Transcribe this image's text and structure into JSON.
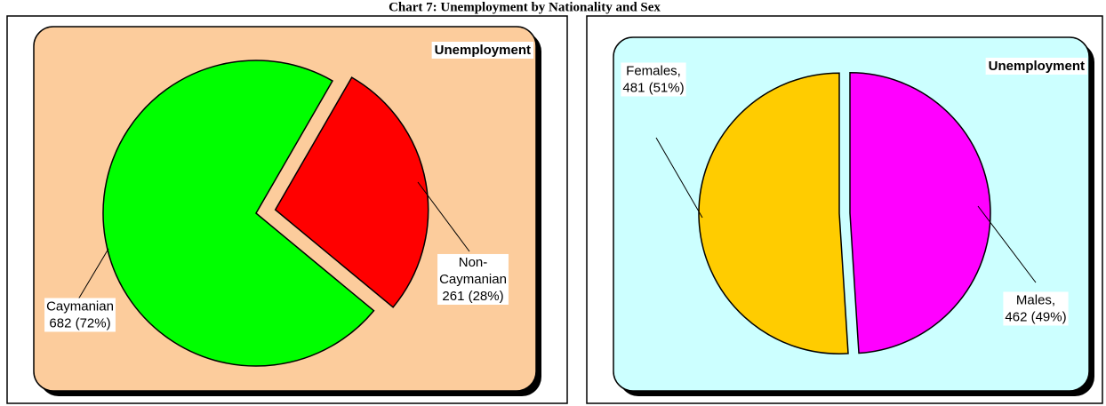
{
  "title": "Chart 7: Unemployment by Nationality and Sex",
  "chart_data": [
    {
      "type": "pie",
      "title": "Unemployment",
      "categories": [
        "Caymanian",
        "Non-Caymanian"
      ],
      "values": [
        682,
        261
      ],
      "value_labels": [
        "682 (72%)",
        "261 (28%)"
      ],
      "colors": [
        "#00ff00",
        "#ff0000"
      ],
      "background": "#fccc9c"
    },
    {
      "type": "pie",
      "title": "Unemployment",
      "categories": [
        "Females,",
        "Males,"
      ],
      "values": [
        481,
        462
      ],
      "value_labels": [
        "481 (51%)",
        "462 (49%)"
      ],
      "colors": [
        "#ffcc00",
        "#ff00ff"
      ],
      "background": "#ccffff"
    }
  ]
}
